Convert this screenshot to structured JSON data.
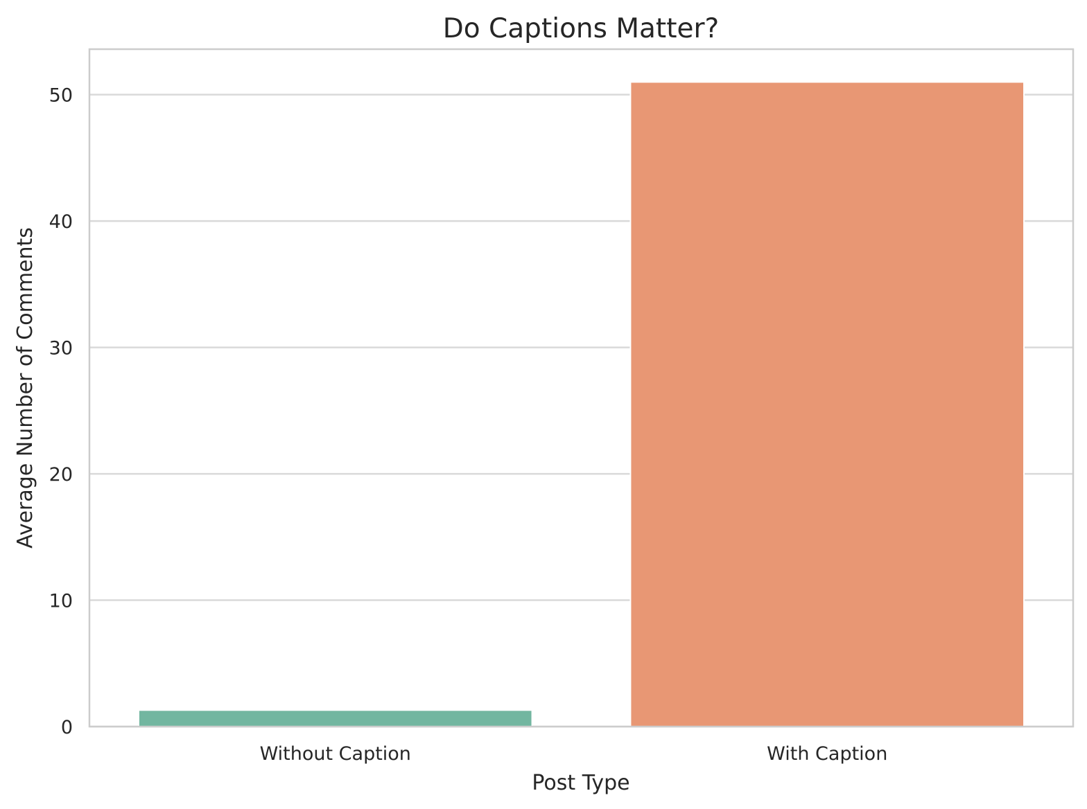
{
  "chart_data": {
    "type": "bar",
    "title": "Do Captions Matter?",
    "xlabel": "Post Type",
    "ylabel": "Average Number of Comments",
    "categories": [
      "Without Caption",
      "With Caption"
    ],
    "values": [
      1.3,
      51.0
    ],
    "colors": [
      "#72b6a0",
      "#e89774"
    ],
    "ylim": [
      0,
      53.6
    ],
    "yticks": [
      0,
      10,
      20,
      30,
      40,
      50
    ],
    "grid": true,
    "legend": "none"
  }
}
